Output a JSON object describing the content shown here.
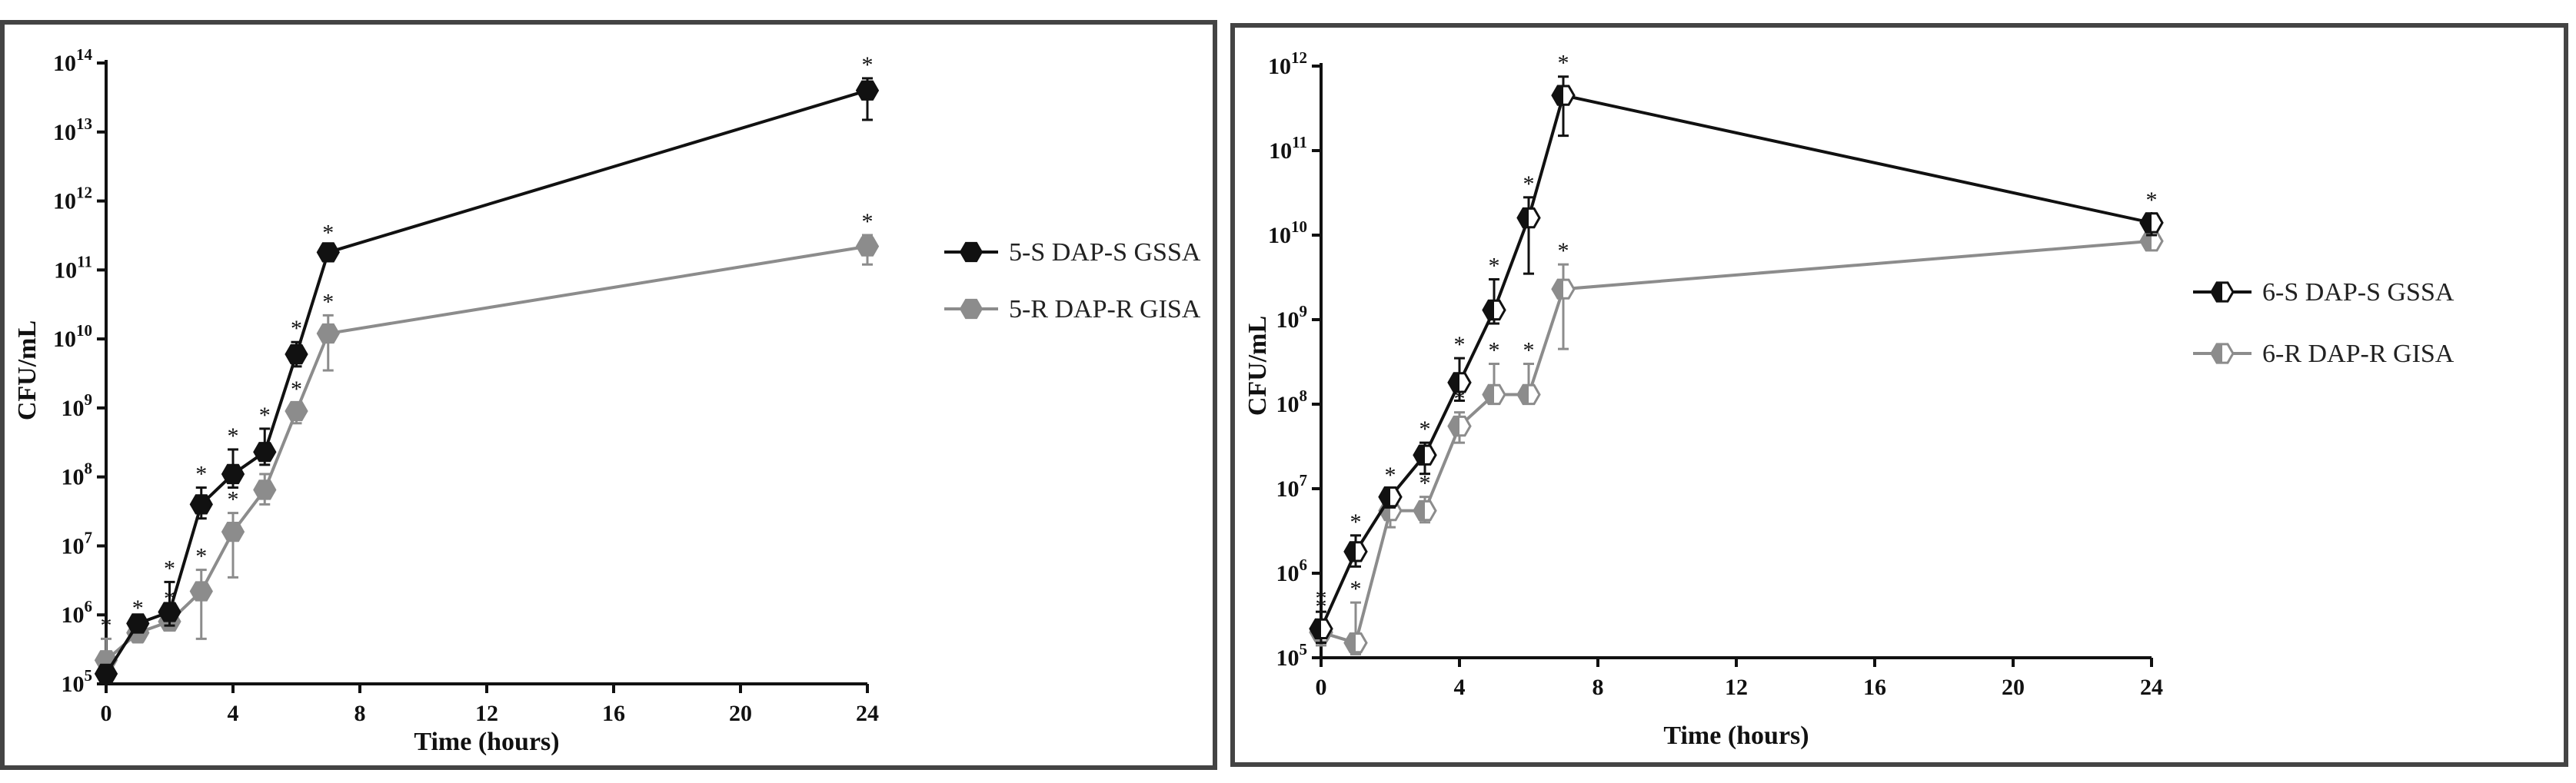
{
  "chart_data": [
    {
      "type": "line",
      "yscale": "log",
      "xlabel": "Time (hours)",
      "ylabel": "CFU/mL",
      "xlim": [
        0,
        24
      ],
      "ylim": [
        100000,
        100000000000000
      ],
      "xticks": [
        "0",
        "4",
        "8",
        "12",
        "16",
        "20",
        "24"
      ],
      "yticks": [
        {
          "base": "10",
          "exp": "5"
        },
        {
          "base": "10",
          "exp": "6"
        },
        {
          "base": "10",
          "exp": "7"
        },
        {
          "base": "10",
          "exp": "8"
        },
        {
          "base": "10",
          "exp": "9"
        },
        {
          "base": "10",
          "exp": "10"
        },
        {
          "base": "10",
          "exp": "11"
        },
        {
          "base": "10",
          "exp": "12"
        },
        {
          "base": "10",
          "exp": "13"
        },
        {
          "base": "10",
          "exp": "14"
        }
      ],
      "significance_marker": "*",
      "series": [
        {
          "name": "5-S DAP-S GSSA",
          "color": "#111111",
          "marker": "filled-hexagon",
          "x": [
            0,
            1,
            2,
            3,
            4,
            5,
            6,
            7,
            24
          ],
          "y": [
            140000,
            750000,
            1100000,
            40000000,
            110000000,
            230000000,
            6000000000,
            180000000000,
            40000000000000
          ],
          "err_hi": [
            180000,
            900000,
            3000000,
            70000000,
            250000000,
            500000000,
            9000000000,
            220000000000,
            60000000000000
          ],
          "err_lo": [
            110000,
            600000,
            700000,
            25000000,
            70000000,
            150000000,
            4000000000,
            140000000000,
            15000000000000
          ],
          "stars": [
            false,
            false,
            true,
            true,
            true,
            true,
            true,
            true,
            true
          ]
        },
        {
          "name": "5-R DAP-R GISA",
          "color": "#8c8c8c",
          "marker": "filled-hexagon",
          "x": [
            0,
            1,
            2,
            3,
            4,
            5,
            6,
            7,
            24
          ],
          "y": [
            220000,
            550000,
            800000,
            2200000,
            16000000,
            65000000,
            900000000,
            12000000000,
            220000000000
          ],
          "err_hi": [
            450000,
            800000,
            1100000,
            4500000,
            30000000,
            110000000,
            1200000000,
            22000000000,
            320000000000
          ],
          "err_lo": [
            110000,
            400000,
            600000,
            450000,
            3500000,
            40000000,
            600000000,
            3500000000,
            120000000000
          ],
          "stars": [
            true,
            true,
            true,
            true,
            true,
            true,
            true,
            true,
            true
          ]
        }
      ]
    },
    {
      "type": "line",
      "yscale": "log",
      "xlabel": "Time (hours)",
      "ylabel": "CFU/mL",
      "xlim": [
        0,
        24
      ],
      "ylim": [
        100000,
        1000000000000
      ],
      "xticks": [
        "0",
        "4",
        "8",
        "12",
        "16",
        "20",
        "24"
      ],
      "yticks": [
        {
          "base": "10",
          "exp": "5"
        },
        {
          "base": "10",
          "exp": "6"
        },
        {
          "base": "10",
          "exp": "7"
        },
        {
          "base": "10",
          "exp": "8"
        },
        {
          "base": "10",
          "exp": "9"
        },
        {
          "base": "10",
          "exp": "10"
        },
        {
          "base": "10",
          "exp": "11"
        },
        {
          "base": "10",
          "exp": "12"
        }
      ],
      "significance_marker": "*",
      "series": [
        {
          "name": "6-S DAP-S GSSA",
          "color": "#111111",
          "marker": "half-filled-hexagon",
          "x": [
            0,
            1,
            2,
            3,
            4,
            5,
            6,
            7,
            24
          ],
          "y": [
            220000,
            1800000,
            8000000,
            25000000,
            180000000,
            1300000000,
            16000000000,
            450000000000,
            14000000000
          ],
          "err_hi": [
            350000,
            2800000,
            10000000,
            35000000,
            350000000,
            3000000000,
            28000000000,
            750000000000,
            18000000000
          ],
          "err_lo": [
            150000,
            1200000,
            6000000,
            15000000,
            110000000,
            900000000,
            3500000000,
            150000000000,
            10000000000
          ],
          "stars": [
            true,
            true,
            true,
            true,
            true,
            true,
            true,
            true,
            true
          ]
        },
        {
          "name": "6-R DAP-R GISA",
          "color": "#8c8c8c",
          "marker": "half-filled-hexagon",
          "x": [
            0,
            1,
            2,
            3,
            4,
            5,
            6,
            7,
            24
          ],
          "y": [
            200000,
            150000,
            5500000,
            5500000,
            55000000,
            130000000,
            130000000,
            2300000000,
            8500000000
          ],
          "err_hi": [
            280000,
            450000,
            8000000,
            8000000,
            80000000,
            300000000,
            300000000,
            4500000000,
            10500000000
          ],
          "err_lo": [
            140000,
            110000,
            3500000,
            4000000,
            35000000,
            110000000,
            110000000,
            450000000,
            7000000000
          ],
          "stars": [
            true,
            true,
            false,
            true,
            true,
            true,
            true,
            true,
            true
          ]
        }
      ]
    }
  ]
}
